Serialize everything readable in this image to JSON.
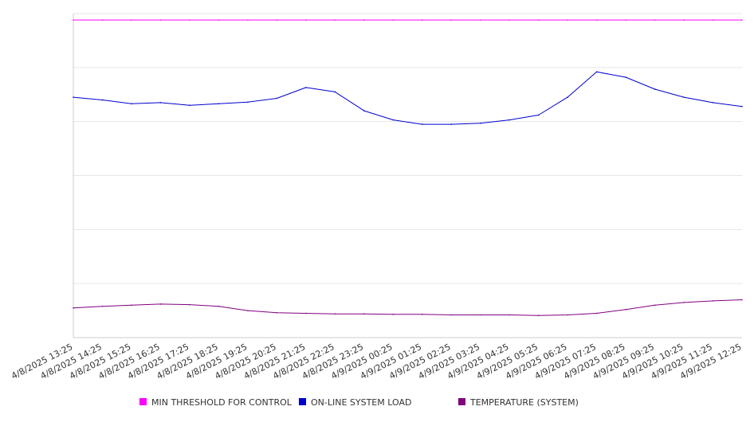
{
  "chart_data": {
    "type": "line",
    "title": "",
    "xlabel": "",
    "ylabel": "",
    "grid": true,
    "legend_position": "bottom",
    "categories": [
      "4/8/2025 13:25",
      "4/8/2025 14:25",
      "4/8/2025 15:25",
      "4/8/2025 16:25",
      "4/8/2025 17:25",
      "4/8/2025 18:25",
      "4/8/2025 19:25",
      "4/8/2025 20:25",
      "4/8/2025 21:25",
      "4/8/2025 22:25",
      "4/8/2025 23:25",
      "4/9/2025 00:25",
      "4/9/2025 01:25",
      "4/9/2025 02:25",
      "4/9/2025 03:25",
      "4/9/2025 04:25",
      "4/9/2025 05:25",
      "4/9/2025 06:25",
      "4/9/2025 07:25",
      "4/9/2025 08:25",
      "4/9/2025 09:25",
      "4/9/2025 10:25",
      "4/9/2025 11:25",
      "4/9/2025 12:25"
    ],
    "ylim": [
      0,
      6
    ],
    "series": [
      {
        "name": "MIN THRESHOLD FOR CONTROL",
        "color": "#ff00ff",
        "values": [
          5.88,
          5.88,
          5.88,
          5.88,
          5.88,
          5.88,
          5.88,
          5.88,
          5.88,
          5.88,
          5.88,
          5.88,
          5.88,
          5.88,
          5.88,
          5.88,
          5.88,
          5.88,
          5.88,
          5.88,
          5.88,
          5.88,
          5.88,
          5.88
        ]
      },
      {
        "name": "ON-LINE SYSTEM LOAD",
        "color": "#0000cc",
        "values": [
          4.45,
          4.4,
          4.33,
          4.35,
          4.3,
          4.33,
          4.36,
          4.43,
          4.63,
          4.55,
          4.2,
          4.03,
          3.95,
          3.95,
          3.97,
          4.03,
          4.12,
          4.45,
          4.92,
          4.82,
          4.6,
          4.45,
          4.35,
          4.28
        ]
      },
      {
        "name": "TEMPERATURE (SYSTEM)",
        "color": "#800080",
        "values": [
          0.55,
          0.58,
          0.6,
          0.62,
          0.61,
          0.58,
          0.5,
          0.46,
          0.45,
          0.44,
          0.44,
          0.43,
          0.43,
          0.42,
          0.42,
          0.42,
          0.41,
          0.42,
          0.45,
          0.52,
          0.6,
          0.65,
          0.68,
          0.7
        ]
      }
    ]
  }
}
